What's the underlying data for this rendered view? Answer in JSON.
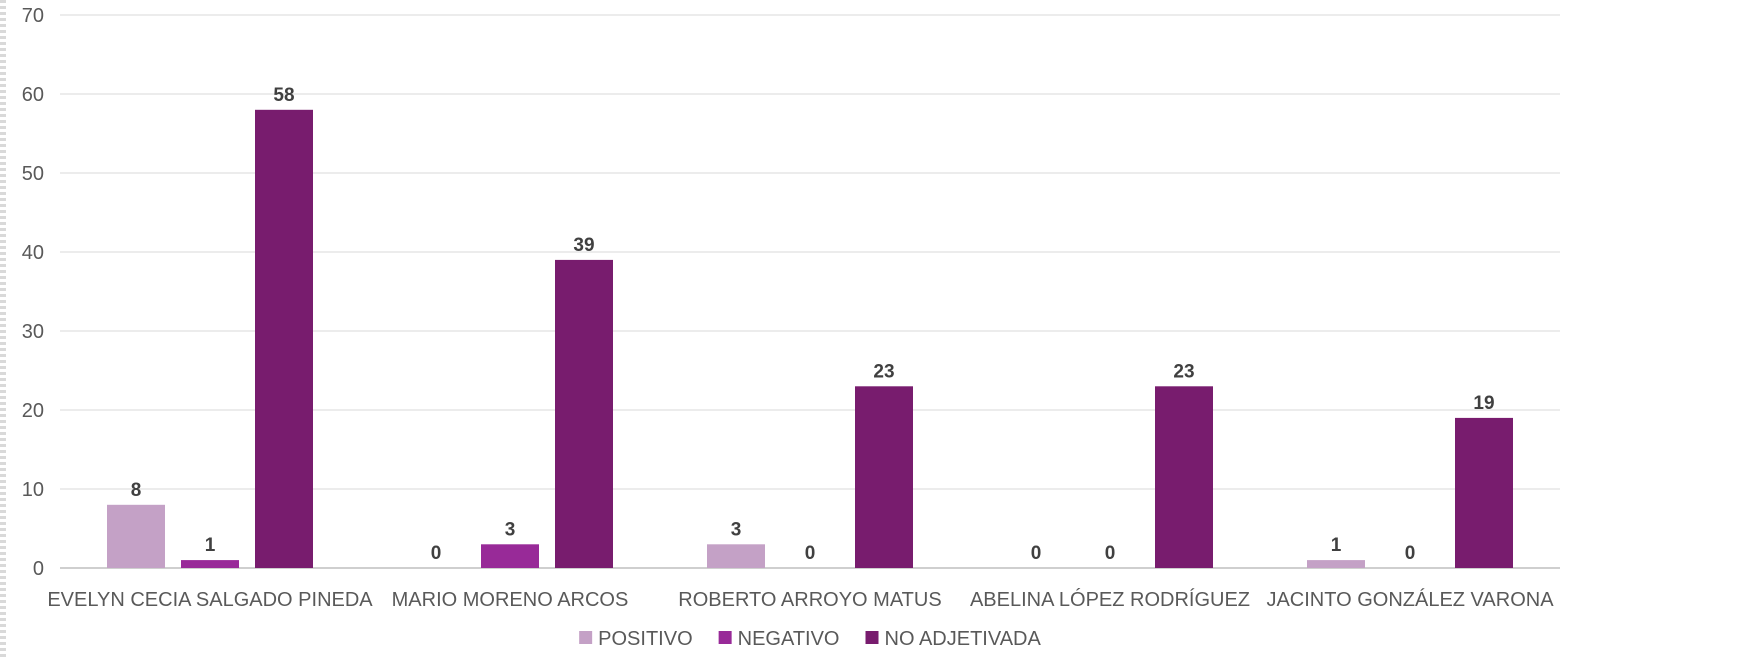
{
  "chart_data": {
    "type": "bar",
    "title": "",
    "xlabel": "",
    "ylabel": "",
    "ylim": [
      0,
      70
    ],
    "yticks": [
      0,
      10,
      20,
      30,
      40,
      50,
      60,
      70
    ],
    "grid": true,
    "legend_position": "bottom",
    "categories": [
      "EVELYN CECIA SALGADO PINEDA",
      "MARIO MORENO ARCOS",
      "ROBERTO ARROYO MATUS",
      "ABELINA LÓPEZ RODRÍGUEZ",
      "JACINTO GONZÁLEZ VARONA"
    ],
    "series": [
      {
        "name": "POSITIVO",
        "color": "#c4a1c6",
        "values": [
          8,
          0,
          3,
          0,
          1
        ]
      },
      {
        "name": "NEGATIVO",
        "color": "#982a98",
        "values": [
          1,
          3,
          0,
          0,
          0
        ]
      },
      {
        "name": "NO ADJETIVADA",
        "color": "#781c6e",
        "values": [
          58,
          39,
          23,
          23,
          19
        ]
      }
    ]
  }
}
